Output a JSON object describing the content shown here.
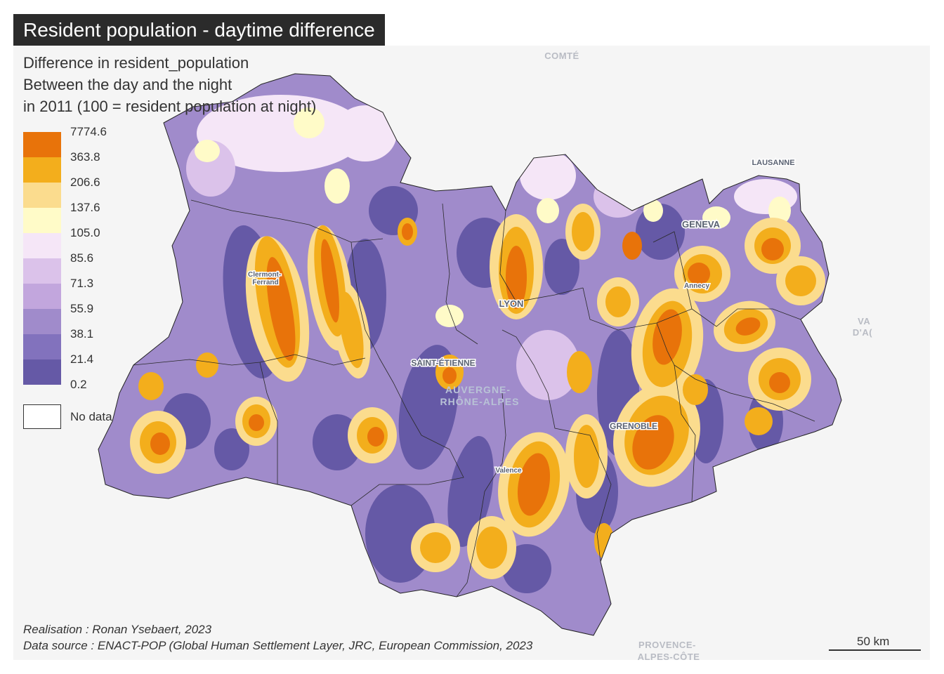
{
  "title": "Resident population - daytime difference",
  "legend": {
    "title_lines": [
      "Difference in resident_population",
      "Between the day and the night",
      "in 2011 (100 = resident population at night)"
    ],
    "colors": [
      "#e8730a",
      "#f3ae1c",
      "#fbdc8e",
      "#fffbc8",
      "#f5e6f7",
      "#dbc2ea",
      "#c2a6dd",
      "#a08bcb",
      "#8272bd",
      "#6559a6"
    ],
    "breaks": [
      "7774.6",
      "363.8",
      "206.6",
      "137.6",
      "105.0",
      "85.6",
      "71.3",
      "55.9",
      "38.1",
      "21.4",
      "0.2"
    ],
    "no_data_label": "No data",
    "no_data_color": "#ffffff"
  },
  "map": {
    "background_color": "#f5f5f5",
    "labels": {
      "city": [
        "Clermont-\nFerrand",
        "LYON",
        "SAINT-ÉTIENNE",
        "GRENOBLE",
        "Valence",
        "Annecy",
        "GENEVA",
        "LAUSANNE"
      ],
      "region": [
        "AUVERGNE-\nRHÔNE-ALPES"
      ],
      "exterior": [
        "COMTÉ",
        "VA\nD'A(",
        "PROVENCE-\nALPES-CÔTE"
      ]
    }
  },
  "credits": {
    "realisation": "Realisation : Ronan Ysebaert, 2023",
    "source": "Data source : ENACT-POP (Global Human Settlement Layer, JRC, European Commission, 2023"
  },
  "scale": {
    "label": "50 km"
  }
}
